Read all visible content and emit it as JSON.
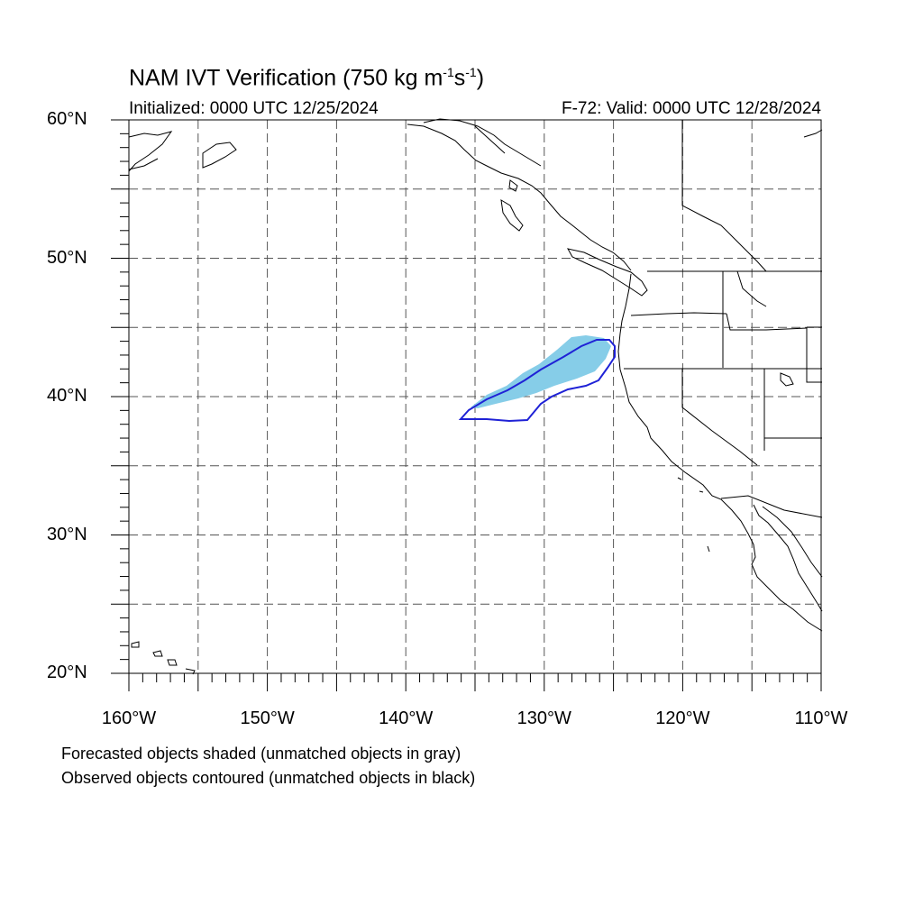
{
  "header": {
    "title_main": "NAM IVT Verification (750 kg m",
    "title_exp1": "-1",
    "title_mid": "s",
    "title_exp2": "-1",
    "title_end": ")",
    "initialized": "Initialized: 0000 UTC 12/25/2024",
    "valid": "F-72: Valid: 0000 UTC 12/28/2024"
  },
  "map": {
    "lon_range": [
      -160,
      -110
    ],
    "lat_range": [
      20,
      60
    ],
    "gridlines": "dashed every 5 degrees",
    "lat_labels": [
      {
        "lat": 60,
        "text": "60°N"
      },
      {
        "lat": 50,
        "text": "50°N"
      },
      {
        "lat": 40,
        "text": "40°N"
      },
      {
        "lat": 30,
        "text": "30°N"
      },
      {
        "lat": 20,
        "text": "20°N"
      }
    ],
    "lon_labels": [
      {
        "lon": -160,
        "text": "160°W"
      },
      {
        "lon": -150,
        "text": "150°W"
      },
      {
        "lon": -140,
        "text": "140°W"
      },
      {
        "lon": -130,
        "text": "130°W"
      },
      {
        "lon": -120,
        "text": "120°W"
      },
      {
        "lon": -110,
        "text": "110°W"
      }
    ],
    "colors": {
      "forecast_fill": "#86cde8",
      "observed_contour": "#1f22d6",
      "coastline": "#000000",
      "grid": "#555555"
    }
  },
  "legend": {
    "forecast_note": "Forecasted objects shaded (unmatched objects in gray)",
    "observed_note": "Observed objects contoured (unmatched objects in black)"
  }
}
